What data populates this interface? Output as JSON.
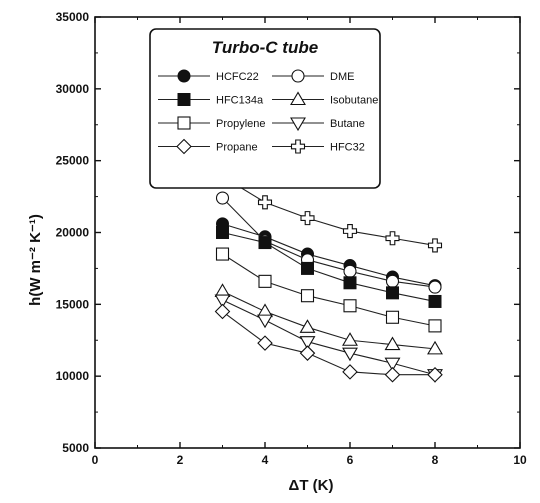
{
  "chart_data": {
    "type": "line",
    "title": "",
    "xlabel": "ΔT (K)",
    "ylabel": "h(W m⁻² K⁻¹)",
    "xlim": [
      0,
      10
    ],
    "ylim": [
      5000,
      35000
    ],
    "xticks": [
      0,
      2,
      4,
      6,
      8,
      10
    ],
    "yticks": [
      5000,
      10000,
      15000,
      20000,
      25000,
      30000,
      35000
    ],
    "grid": false,
    "legend": {
      "title": "Turbo-C tube",
      "placement": "top-center",
      "columns": 2
    },
    "series": [
      {
        "name": "HCFC22",
        "marker": "circle-filled",
        "x": [
          3,
          4,
          5,
          6,
          7,
          8
        ],
        "y": [
          20600,
          19700,
          18500,
          17700,
          16900,
          16300
        ]
      },
      {
        "name": "DME",
        "marker": "circle-open",
        "x": [
          3,
          4,
          5,
          6,
          7,
          8
        ],
        "y": [
          22400,
          19400,
          18100,
          17300,
          16600,
          16200
        ]
      },
      {
        "name": "HFC134a",
        "marker": "square-filled",
        "x": [
          3,
          4,
          5,
          6,
          7,
          8
        ],
        "y": [
          20000,
          19300,
          17500,
          16500,
          15800,
          15200
        ]
      },
      {
        "name": "Isobutane",
        "marker": "triangle-up-open",
        "x": [
          3,
          4,
          5,
          6,
          7,
          8
        ],
        "y": [
          15900,
          14500,
          13400,
          12500,
          12200,
          11900
        ]
      },
      {
        "name": "Propylene",
        "marker": "square-open",
        "x": [
          3,
          4,
          5,
          6,
          7,
          8
        ],
        "y": [
          18500,
          16600,
          15600,
          14900,
          14100,
          13500
        ]
      },
      {
        "name": "Butane",
        "marker": "triangle-down-open",
        "x": [
          3,
          4,
          5,
          6,
          7,
          8
        ],
        "y": [
          15300,
          13900,
          12400,
          11600,
          10900,
          10100
        ]
      },
      {
        "name": "Propane",
        "marker": "diamond-open",
        "x": [
          3,
          4,
          5,
          6,
          7,
          8
        ],
        "y": [
          14500,
          12300,
          11600,
          10300,
          10100,
          10100
        ]
      },
      {
        "name": "HFC32",
        "marker": "cross-open",
        "x": [
          3,
          4,
          5,
          6,
          7,
          8
        ],
        "y": [
          23900,
          22100,
          21000,
          20100,
          19600,
          19100
        ]
      }
    ]
  }
}
